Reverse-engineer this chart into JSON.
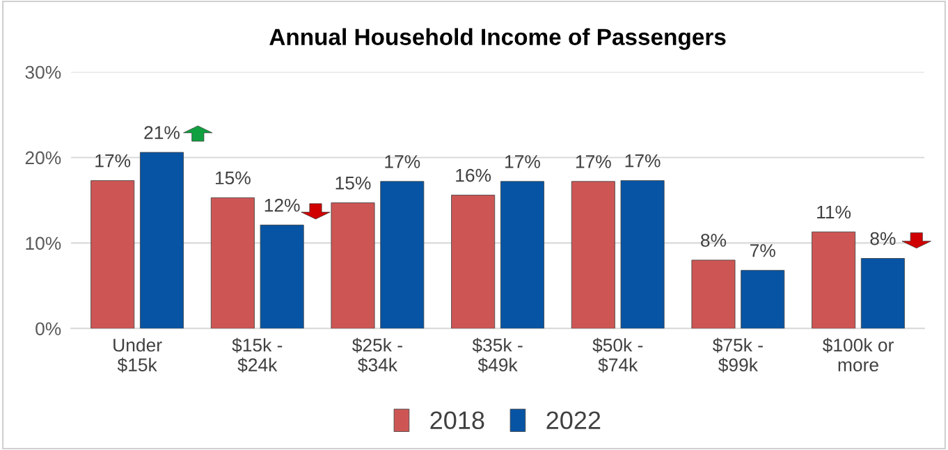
{
  "chart_data": {
    "type": "bar",
    "title": "Annual Household Income of Passengers",
    "categories": [
      "Under\n$15k",
      "$15k -\n$24k",
      "$25k -\n$34k",
      "$35k -\n$49k",
      "$50k -\n$74k",
      "$75k -\n$99k",
      "$100k or\nmore"
    ],
    "series": [
      {
        "name": "2018",
        "color": "#cd5654",
        "values": [
          17.3,
          15.3,
          14.7,
          15.6,
          17.2,
          8.0,
          11.3
        ],
        "value_labels": [
          "17%",
          "15%",
          "15%",
          "16%",
          "17%",
          "8%",
          "11%"
        ]
      },
      {
        "name": "2022",
        "color": "#0754a4",
        "values": [
          20.6,
          12.1,
          17.2,
          17.2,
          17.3,
          6.8,
          8.2
        ],
        "value_labels": [
          "21%",
          "12%",
          "17%",
          "17%",
          "17%",
          "7%",
          "8%"
        ]
      }
    ],
    "ylim": [
      0,
      30
    ],
    "yticks": [
      {
        "value": 0,
        "label": "0%"
      },
      {
        "value": 10,
        "label": "10%"
      },
      {
        "value": 20,
        "label": "20%"
      },
      {
        "value": 30,
        "label": "30%"
      }
    ],
    "grid": "y",
    "legend": "bottom"
  }
}
